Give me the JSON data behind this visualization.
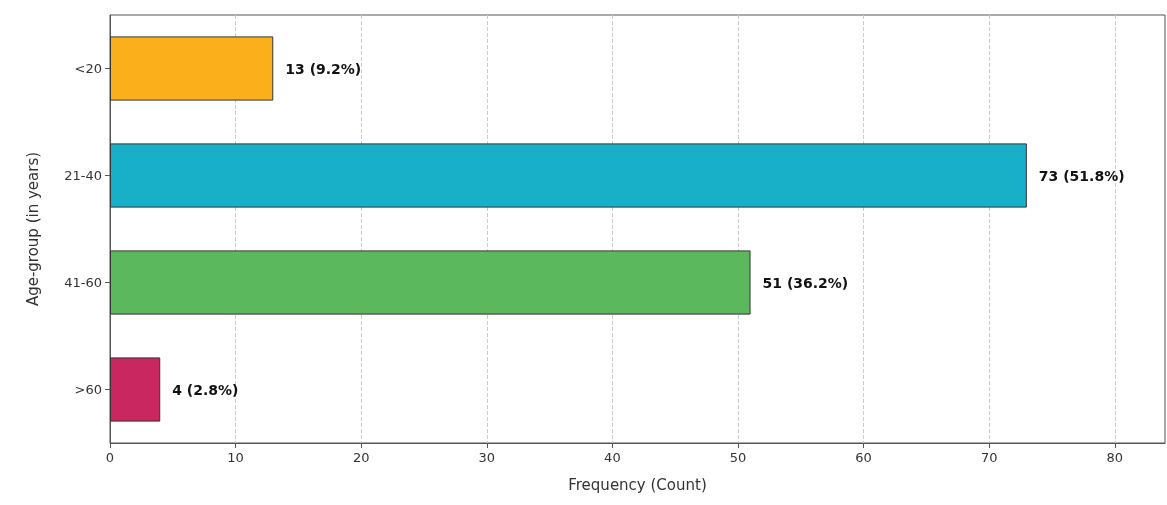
{
  "chart_data": {
    "type": "bar",
    "orientation": "horizontal",
    "xlabel": "Frequency (Count)",
    "ylabel": "Age-group (in years)",
    "categories": [
      "<20",
      "21-40",
      "41-60",
      ">60"
    ],
    "values": [
      13,
      73,
      51,
      4
    ],
    "colors": [
      "#fbb01b",
      "#17b0c8",
      "#5cb85c",
      "#c8285f"
    ],
    "value_labels": [
      "13 (9.2%)",
      "73 (51.8%)",
      "51 (36.2%)",
      "4 (2.8%)"
    ],
    "xlim": [
      0,
      84
    ],
    "xticks": [
      0,
      10,
      20,
      30,
      40,
      50,
      60,
      70,
      80
    ],
    "grid": "x"
  }
}
